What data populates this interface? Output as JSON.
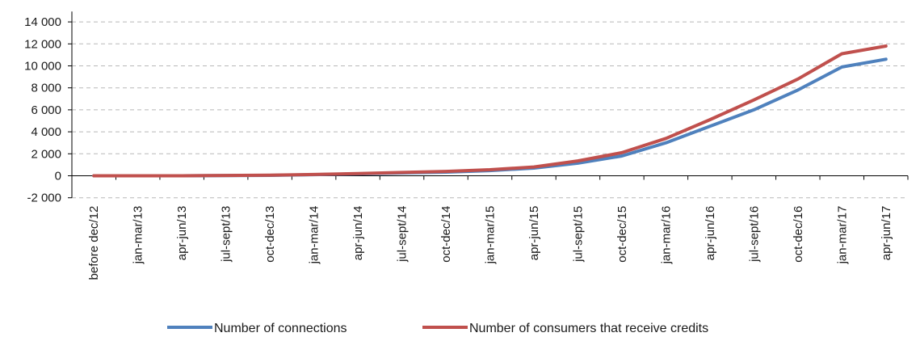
{
  "chart_data": {
    "type": "line",
    "title": "",
    "xlabel": "",
    "ylabel": "",
    "categories": [
      "before dec/12",
      "jan-mar/13",
      "apr-jun/13",
      "jul-sept/13",
      "oct-dec/13",
      "jan-mar/14",
      "apr-jun/14",
      "jul-sept/14",
      "oct-dec/14",
      "jan-mar/15",
      "apr-jun/15",
      "jul-sept/15",
      "oct-dec/15",
      "jan-mar/16",
      "apr-jun/16",
      "jul-sept/16",
      "oct-dec/16",
      "jan-mar/17",
      "apr-jun/17"
    ],
    "y_ticks": [
      -2000,
      0,
      2000,
      4000,
      6000,
      8000,
      10000,
      12000,
      14000
    ],
    "y_tick_labels": [
      "-2 000",
      "0",
      "2 000",
      "4 000",
      "6 000",
      "8 000",
      "10 000",
      "12 000",
      "14 000"
    ],
    "ylim": [
      -2000,
      15000
    ],
    "grid": "horizontal dashed",
    "legend_position": "bottom",
    "series": [
      {
        "name": "Number of connections",
        "color": "#4f81bd",
        "values": [
          0,
          0,
          0,
          20,
          40,
          100,
          180,
          260,
          330,
          470,
          700,
          1150,
          1800,
          3000,
          4500,
          6000,
          7800,
          9900,
          10600
        ]
      },
      {
        "name": "Number of consumers that receive credits",
        "color": "#c0504d",
        "values": [
          0,
          0,
          0,
          30,
          60,
          120,
          200,
          300,
          400,
          550,
          800,
          1350,
          2100,
          3400,
          5100,
          6900,
          8800,
          11100,
          11800
        ]
      }
    ]
  }
}
